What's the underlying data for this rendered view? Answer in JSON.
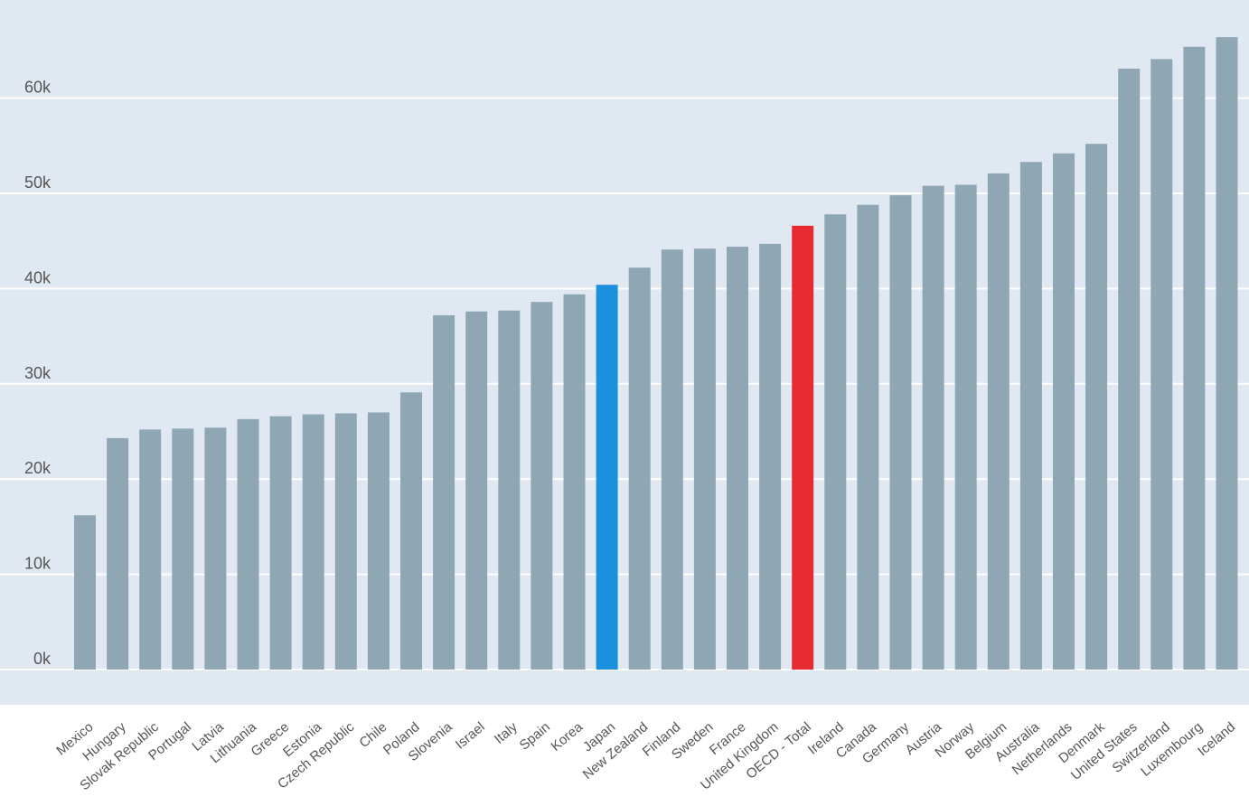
{
  "chart_data": {
    "type": "bar",
    "categories": [
      "Mexico",
      "Hungary",
      "Slovak Republic",
      "Portugal",
      "Latvia",
      "Lithuania",
      "Greece",
      "Estonia",
      "Czech Republic",
      "Chile",
      "Poland",
      "Slovenia",
      "Israel",
      "Italy",
      "Spain",
      "Korea",
      "Japan",
      "New Zealand",
      "Finland",
      "Sweden",
      "France",
      "United Kingdom",
      "OECD - Total",
      "Ireland",
      "Canada",
      "Germany",
      "Austria",
      "Norway",
      "Belgium",
      "Australia",
      "Netherlands",
      "Denmark",
      "United States",
      "Switzerland",
      "Luxembourg",
      "Iceland"
    ],
    "values": [
      16200,
      24300,
      25200,
      25300,
      25400,
      26300,
      26600,
      26800,
      26900,
      27000,
      29100,
      37200,
      37600,
      37700,
      38600,
      39400,
      40400,
      42200,
      44100,
      44200,
      44400,
      44700,
      46600,
      47800,
      48800,
      49800,
      50800,
      50900,
      52100,
      53300,
      54200,
      55200,
      63100,
      64100,
      65400,
      66400
    ],
    "ylim": [
      0,
      69000
    ],
    "yticks": [
      0,
      10000,
      20000,
      30000,
      40000,
      50000,
      60000
    ],
    "ytick_labels": [
      "0k",
      "10k",
      "20k",
      "30k",
      "40k",
      "50k",
      "60k"
    ],
    "grid": true,
    "colors": {
      "background": "#e0e9f2",
      "bar_default": "#8fa6b4",
      "gridline": "#ffffff",
      "highlight": {
        "Japan": "#1b90dd",
        "OECD - Total": "#e62b32"
      },
      "label_default": "#555555"
    }
  }
}
